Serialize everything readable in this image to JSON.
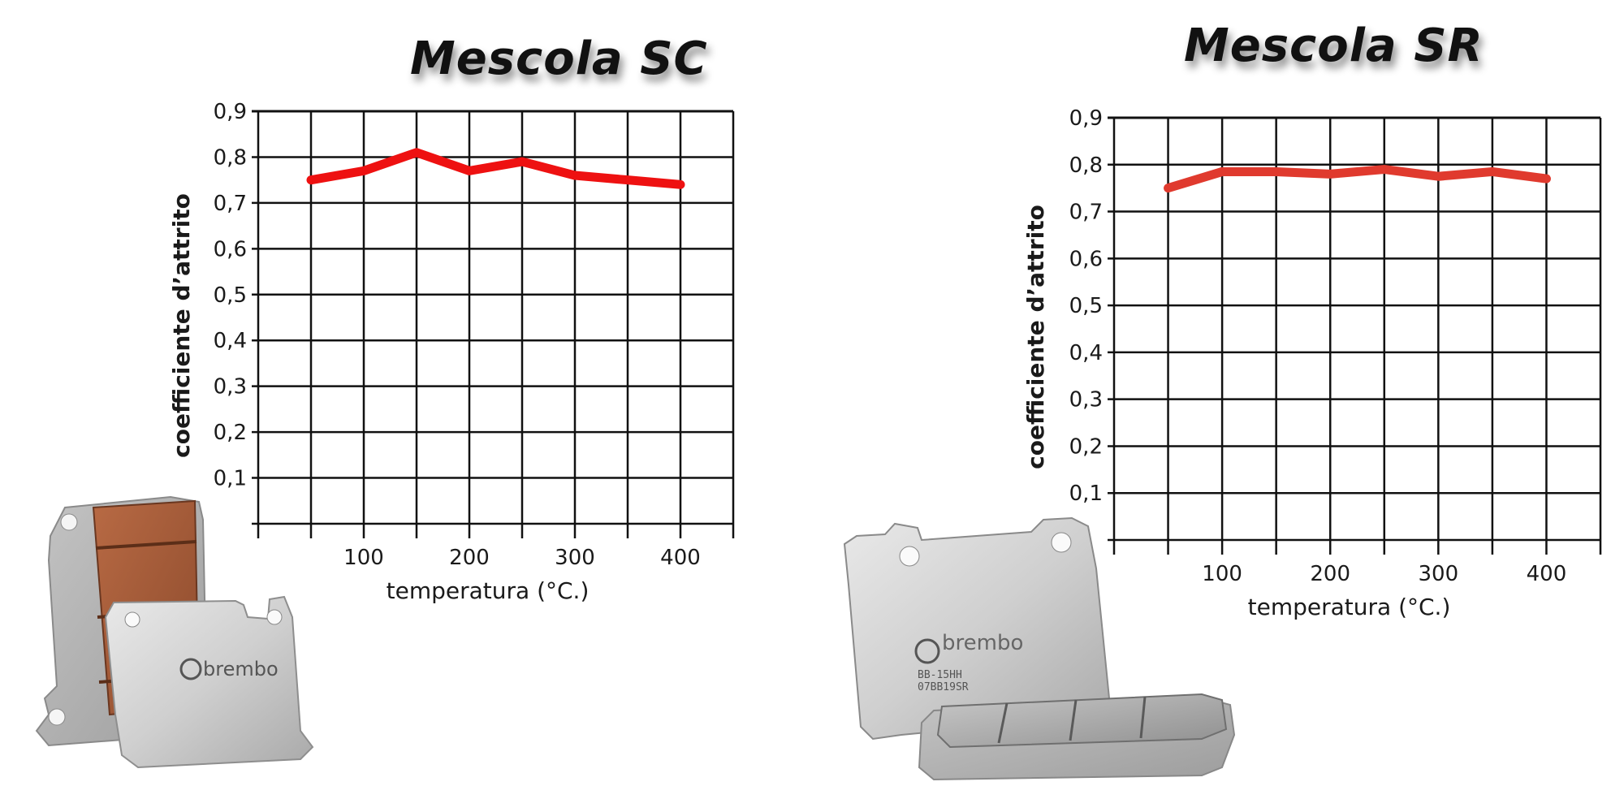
{
  "chart_data": [
    {
      "type": "line",
      "title": "Mescola SC",
      "xlabel": "temperatura (°C.)",
      "ylabel": "coefficiente d’attrito",
      "x_tick_labels": [
        "100",
        "200",
        "300",
        "400"
      ],
      "y_tick_labels": [
        "0,1",
        "0,2",
        "0,3",
        "0,4",
        "0,5",
        "0,6",
        "0,7",
        "0,8",
        "0,9"
      ],
      "xlim": [
        0,
        450
      ],
      "ylim": [
        0,
        0.9
      ],
      "grid": true,
      "series": [
        {
          "x": [
            50,
            100,
            150,
            200,
            250,
            300,
            350,
            400
          ],
          "values": [
            0.75,
            0.77,
            0.81,
            0.77,
            0.79,
            0.76,
            0.75,
            0.74
          ]
        }
      ],
      "line_color": "#ee1111"
    },
    {
      "type": "line",
      "title": "Mescola SR",
      "xlabel": "temperatura (°C.)",
      "ylabel": "coefficiente d’attrito",
      "x_tick_labels": [
        "100",
        "200",
        "300",
        "400"
      ],
      "y_tick_labels": [
        "0,1",
        "0,2",
        "0,3",
        "0,4",
        "0,5",
        "0,6",
        "0,7",
        "0,8",
        "0,9"
      ],
      "xlim": [
        0,
        450
      ],
      "ylim": [
        0,
        0.9
      ],
      "grid": true,
      "series": [
        {
          "x": [
            50,
            100,
            150,
            200,
            250,
            300,
            350,
            400
          ],
          "values": [
            0.75,
            0.785,
            0.785,
            0.78,
            0.79,
            0.775,
            0.785,
            0.77
          ]
        }
      ],
      "line_color": "#e03a2e"
    }
  ],
  "images": {
    "pad_sc": {
      "brand": "brembo",
      "code": ""
    },
    "pad_sr": {
      "brand": "brembo",
      "code_1": "BB-15HH",
      "code_2": "07BB19SR"
    }
  }
}
